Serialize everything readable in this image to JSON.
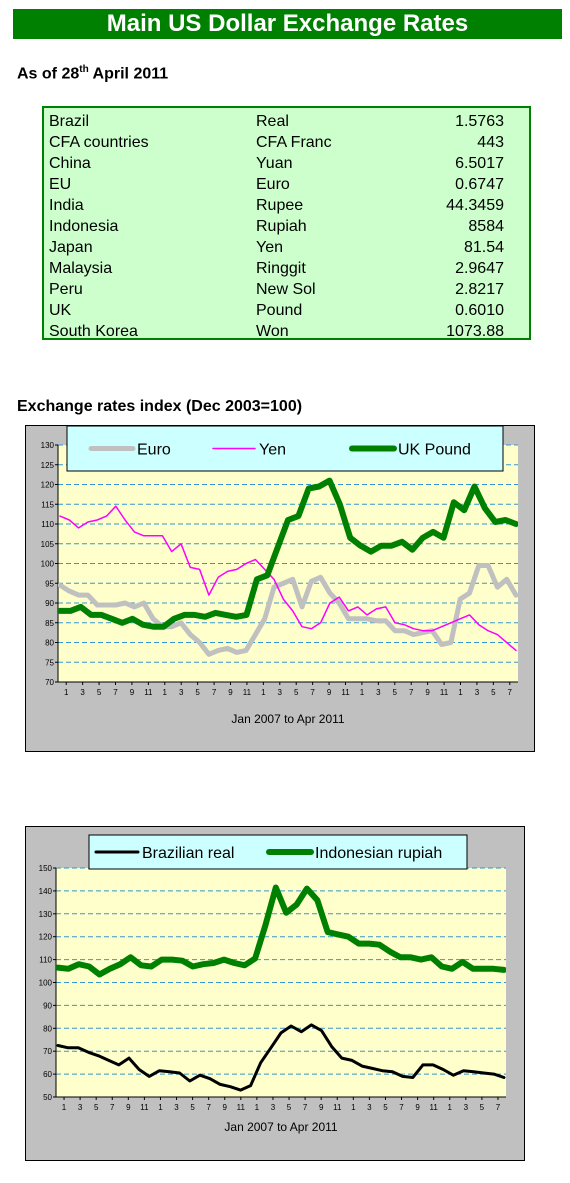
{
  "header": {
    "title": "Main US Dollar Exchange Rates"
  },
  "as_of": {
    "prefix": "As of 28",
    "sup": "th",
    "suffix": " April 2011"
  },
  "rates_table": {
    "rows": [
      [
        "Brazil",
        "Real",
        "1.5763"
      ],
      [
        "CFA countries",
        "CFA Franc",
        "443"
      ],
      [
        "China",
        "Yuan",
        "6.5017"
      ],
      [
        "EU",
        "Euro",
        "0.6747"
      ],
      [
        "India",
        "Rupee",
        "44.3459"
      ],
      [
        "Indonesia",
        "Rupiah",
        "8584"
      ],
      [
        "Japan",
        "Yen",
        "81.54"
      ],
      [
        "Malaysia",
        "Ringgit",
        "2.9647"
      ],
      [
        "Peru",
        "New Sol",
        "2.8217"
      ],
      [
        "UK",
        "Pound",
        "0.6010"
      ],
      [
        "South Korea",
        "Won",
        "1073.88"
      ]
    ]
  },
  "section": {
    "index_title": "Exchange rates index (Dec 2003=100)"
  },
  "colors": {
    "banner": "#008000",
    "table_bg": "#ccffcc",
    "plot_bg": "#ffffcc",
    "chart_frame_bg": "#c0c0c0",
    "legend_bg": "#ccffff"
  },
  "chart_data": [
    {
      "type": "line",
      "title": "",
      "xlabel": "Jan 2007 to Apr 2011",
      "ylabel": "",
      "ylim": [
        70,
        130
      ],
      "yticks": [
        70,
        75,
        80,
        85,
        90,
        95,
        100,
        105,
        110,
        115,
        120,
        125,
        130
      ],
      "xtick_labels": [
        "1",
        "3",
        "5",
        "7",
        "9",
        "11",
        "1",
        "3",
        "5",
        "7",
        "9",
        "11",
        "1",
        "3",
        "5",
        "7",
        "9",
        "11",
        "1",
        "3",
        "5",
        "7",
        "9",
        "11",
        "1",
        "3",
        "5",
        "7"
      ],
      "grid": true,
      "legend": "top",
      "series": [
        {
          "name": "Euro",
          "color": "#c0c0c0",
          "width": 5,
          "values": [
            94.5,
            93,
            92,
            92,
            89.5,
            89.5,
            89.5,
            90,
            89,
            90,
            86,
            84,
            84,
            85,
            82,
            80,
            77,
            78,
            78.5,
            77.5,
            78,
            82,
            86,
            94,
            95,
            96,
            89,
            95.5,
            96.5,
            92.5,
            90,
            86,
            86,
            86,
            85.5,
            85.5,
            83,
            83,
            82,
            82.5,
            83,
            79.5,
            80,
            91,
            92.5,
            99.5,
            99.5,
            94,
            96,
            92
          ]
        },
        {
          "name": "Yen",
          "color": "#ff00ff",
          "width": 1.5,
          "values": [
            112,
            111,
            109,
            110.5,
            111,
            112,
            114.5,
            111,
            108,
            107,
            107,
            107,
            103,
            105,
            99,
            98.5,
            92,
            96.5,
            98,
            98.5,
            100,
            101,
            98.5,
            96,
            91,
            88,
            84,
            83.5,
            85,
            90,
            91.5,
            88,
            89,
            87,
            88.5,
            89,
            85,
            84.5,
            83.5,
            83,
            83,
            84,
            85,
            86,
            87,
            84.5,
            83,
            82,
            80,
            78
          ]
        },
        {
          "name": "UK Pound",
          "color": "#008000",
          "width": 6,
          "values": [
            88,
            88,
            89,
            87,
            87,
            86,
            85,
            86,
            84.5,
            84,
            84,
            86,
            87,
            87,
            86.5,
            87.5,
            87,
            86.5,
            87,
            96,
            97,
            104,
            111,
            112,
            119,
            119.5,
            121,
            115,
            106.5,
            104.5,
            103,
            104.5,
            104.5,
            105.5,
            103.5,
            106.5,
            108,
            106.5,
            115.5,
            113.5,
            119.5,
            114,
            110.5,
            111,
            110
          ]
        }
      ]
    },
    {
      "type": "line",
      "title": "",
      "xlabel": "Jan 2007 to Apr 2011",
      "ylabel": "",
      "ylim": [
        50,
        150
      ],
      "yticks": [
        50,
        60,
        70,
        80,
        90,
        100,
        110,
        120,
        130,
        140,
        150
      ],
      "xtick_labels": [
        "1",
        "3",
        "5",
        "7",
        "9",
        "11",
        "1",
        "3",
        "5",
        "7",
        "9",
        "11",
        "1",
        "3",
        "5",
        "7",
        "9",
        "11",
        "1",
        "3",
        "5",
        "7",
        "9",
        "11",
        "1",
        "3",
        "5",
        "7"
      ],
      "grid": true,
      "legend": "top",
      "series": [
        {
          "name": "Brazilian real",
          "color": "#000000",
          "width": 3,
          "values": [
            72.5,
            71.5,
            71.5,
            69.5,
            68,
            66,
            64,
            67,
            62,
            59,
            61.5,
            61,
            60.5,
            57,
            59.5,
            58,
            55.5,
            54.5,
            53,
            55,
            65,
            71.5,
            78,
            81,
            78.5,
            81.5,
            79,
            72,
            67,
            66,
            63.5,
            62.5,
            61.5,
            61,
            59,
            58.5,
            64,
            64,
            62,
            59.5,
            61.5,
            61,
            60.5,
            60,
            58.5
          ]
        },
        {
          "name": "Indonesian rupiah",
          "color": "#008000",
          "width": 6,
          "values": [
            106.5,
            106,
            108,
            107,
            103.5,
            106,
            108,
            111,
            107.5,
            107,
            110,
            110,
            109.5,
            107,
            108,
            108.5,
            110,
            108.5,
            107.5,
            110.5,
            125,
            141.5,
            130.5,
            134,
            141,
            136,
            122,
            121,
            120,
            117,
            117,
            116.5,
            113.5,
            111,
            111,
            110,
            111,
            107,
            106,
            109,
            106,
            106,
            106,
            105.5
          ]
        }
      ]
    }
  ]
}
